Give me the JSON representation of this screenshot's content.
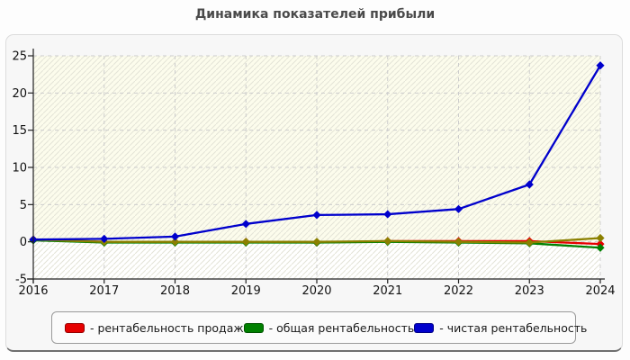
{
  "page": {
    "title": "Динамика показателей прибыли"
  },
  "chart_data": {
    "type": "line",
    "title": "Динамика показателей прибыли",
    "x": [
      "2016",
      "2017",
      "2018",
      "2019",
      "2020",
      "2021",
      "2022",
      "2023",
      "2024"
    ],
    "xlabel": "",
    "ylabel": "",
    "ylim": [
      -5,
      25
    ],
    "yticks": [
      -5,
      0,
      5,
      10,
      15,
      20,
      25
    ],
    "grid": true,
    "legend_position": "bottom",
    "series": [
      {
        "name": "рентабельность продаж",
        "color": "#e60000",
        "marker": "diamond",
        "values": [
          0.3,
          0.0,
          0.0,
          0.0,
          -0.1,
          0.1,
          0.1,
          0.1,
          -0.3
        ]
      },
      {
        "name": "общая рентабельность",
        "color": "#008000",
        "marker": "diamond",
        "values": [
          0.2,
          -0.1,
          -0.1,
          -0.1,
          -0.1,
          0.0,
          -0.1,
          -0.2,
          -0.8
        ]
      },
      {
        "name": "чистая рентабельность",
        "color": "#0000cc",
        "marker": "diamond",
        "values": [
          0.3,
          0.4,
          0.7,
          2.4,
          3.6,
          3.7,
          4.4,
          7.7,
          23.7
        ]
      },
      {
        "name": "",
        "in_legend": false,
        "color": "#8b8000",
        "marker": "diamond",
        "values": [
          0.3,
          0.0,
          0.0,
          0.0,
          0.0,
          0.1,
          0.0,
          -0.1,
          0.5
        ]
      }
    ]
  },
  "legend": {
    "items": [
      {
        "label": "- рентабельность продаж",
        "color": "#e60000"
      },
      {
        "label": "- общая рентабельность",
        "color": "#008000"
      },
      {
        "label": "- чистая рентабельность",
        "color": "#0000cc"
      }
    ]
  },
  "colors": {
    "plot_bg_positive": "#fcfcec",
    "plot_bg_negative": "#ffffff",
    "gridline": "#cccccc",
    "axis": "#222222",
    "hatch": "#e3e3d6"
  }
}
